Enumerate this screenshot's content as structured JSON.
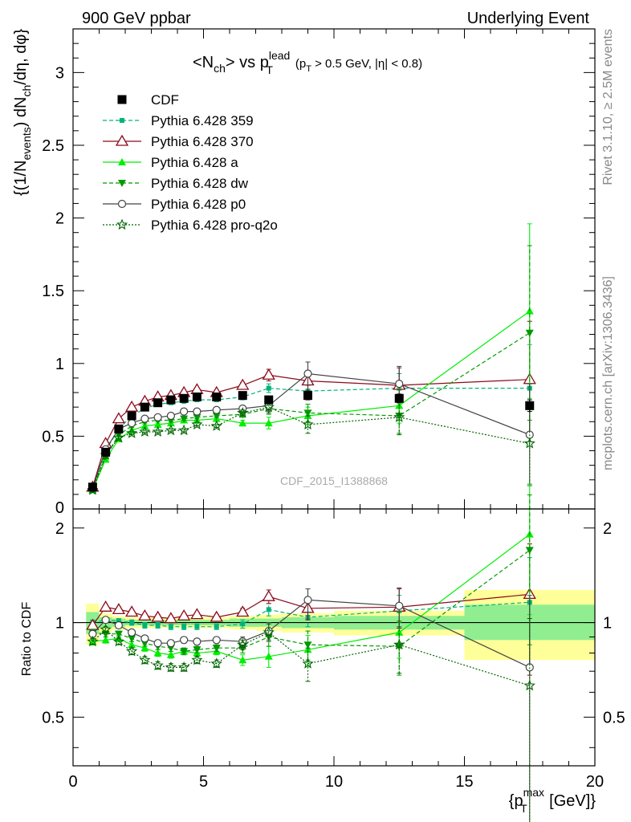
{
  "header": {
    "left": "900 GeV ppbar",
    "right": "Underlying Event"
  },
  "side_labels": {
    "rivet": "Rivet 3.1.10, ≥ 2.5M events",
    "mcplots": "mcplots.cern.ch [arXiv:1306.3436]"
  },
  "watermark": "CDF_2015_I1388868",
  "colors": {
    "CDF": "#000000",
    "Pythia 6.428 359": "#00b37a",
    "Pythia 6.428 370": "#8b0a1a",
    "Pythia 6.428 a": "#00ee00",
    "Pythia 6.428 dw": "#009900",
    "Pythia 6.428 p0": "#444444",
    "Pythia 6.428 pro-q2o": "#006600",
    "band_inner": "#90ee90",
    "band_outer": "#ffff99"
  },
  "chart_data": [
    {
      "type": "scatter",
      "panel": "main",
      "title": "<N_ch> vs p_T^lead (p_T > 0.5 GeV, |η| < 0.8)",
      "title_main": "<N",
      "title_sub_ch": "ch",
      "title_vs": "> vs p",
      "title_sup_lead": "lead",
      "title_sub_T": "T",
      "title_cuts": "(p",
      "title_cuts_sub": "T",
      "title_cuts_rest": " > 0.5 GeV, |η| < 0.8)",
      "ylabel": "{(1/N_events) dN_ch/dη, dφ}",
      "ylabel_parts": {
        "a": "{(1/N",
        "b": "events",
        "c": ") dN",
        "d": "ch",
        "e": "/dη, dφ}"
      },
      "xlim": [
        0,
        20
      ],
      "ylim": [
        0,
        3.3
      ],
      "yticks": [
        0.5,
        1,
        1.5,
        2,
        2.5,
        3
      ],
      "ytick_labels": [
        "0.5",
        "1",
        "1.5",
        "2",
        "2.5",
        "3"
      ],
      "ytick_zero_label": "0",
      "legend_position": "top-left",
      "series": [
        {
          "name": "CDF",
          "style": "square",
          "x": [
            0.75,
            1.25,
            1.75,
            2.25,
            2.75,
            3.25,
            3.75,
            4.25,
            4.75,
            5.5,
            6.5,
            7.5,
            9,
            12.5,
            17.5
          ],
          "y": [
            0.15,
            0.39,
            0.55,
            0.64,
            0.7,
            0.73,
            0.75,
            0.76,
            0.77,
            0.77,
            0.78,
            0.75,
            0.78,
            0.76,
            0.71
          ],
          "err": [
            0.01,
            0.01,
            0.01,
            0.01,
            0.01,
            0.01,
            0.01,
            0.01,
            0.01,
            0.01,
            0.02,
            0.02,
            0.03,
            0.03,
            0.04
          ]
        },
        {
          "name": "Pythia 6.428 359",
          "style": "dashed-smallsquare",
          "x": [
            0.75,
            1.25,
            1.75,
            2.25,
            2.75,
            3.25,
            3.75,
            4.25,
            4.75,
            5.5,
            6.5,
            7.5,
            9,
            12.5,
            17.5
          ],
          "y": [
            0.15,
            0.4,
            0.55,
            0.64,
            0.69,
            0.72,
            0.73,
            0.74,
            0.75,
            0.75,
            0.77,
            0.83,
            0.81,
            0.83,
            0.83
          ],
          "err": [
            0.01,
            0.01,
            0.01,
            0.01,
            0.01,
            0.01,
            0.01,
            0.01,
            0.01,
            0.01,
            0.02,
            0.03,
            0.05,
            0.1,
            0.3
          ]
        },
        {
          "name": "Pythia 6.428 370",
          "style": "solid-opentriangle",
          "x": [
            0.75,
            1.25,
            1.75,
            2.25,
            2.75,
            3.25,
            3.75,
            4.25,
            4.75,
            5.5,
            6.5,
            7.5,
            9,
            12.5,
            17.5
          ],
          "y": [
            0.15,
            0.45,
            0.62,
            0.7,
            0.74,
            0.77,
            0.78,
            0.8,
            0.82,
            0.8,
            0.85,
            0.92,
            0.88,
            0.85,
            0.89
          ],
          "err": [
            0.01,
            0.01,
            0.01,
            0.01,
            0.01,
            0.01,
            0.01,
            0.01,
            0.01,
            0.01,
            0.02,
            0.04,
            0.07,
            0.12,
            0.4
          ]
        },
        {
          "name": "Pythia 6.428 a",
          "style": "solid-triangle",
          "x": [
            0.75,
            1.25,
            1.75,
            2.25,
            2.75,
            3.25,
            3.75,
            4.25,
            4.75,
            5.5,
            6.5,
            7.5,
            9,
            12.5,
            17.5
          ],
          "y": [
            0.13,
            0.34,
            0.48,
            0.54,
            0.57,
            0.58,
            0.59,
            0.61,
            0.61,
            0.62,
            0.59,
            0.59,
            0.64,
            0.71,
            1.36
          ],
          "err": [
            0.01,
            0.01,
            0.01,
            0.01,
            0.01,
            0.01,
            0.01,
            0.01,
            0.01,
            0.01,
            0.02,
            0.04,
            0.06,
            0.12,
            0.6
          ]
        },
        {
          "name": "Pythia 6.428 dw",
          "style": "dashed-downtriangle",
          "x": [
            0.75,
            1.25,
            1.75,
            2.25,
            2.75,
            3.25,
            3.75,
            4.25,
            4.75,
            5.5,
            6.5,
            7.5,
            9,
            12.5,
            17.5
          ],
          "y": [
            0.14,
            0.36,
            0.51,
            0.57,
            0.6,
            0.61,
            0.61,
            0.62,
            0.63,
            0.64,
            0.65,
            0.69,
            0.66,
            0.64,
            1.21
          ],
          "err": [
            0.01,
            0.01,
            0.01,
            0.01,
            0.01,
            0.01,
            0.01,
            0.01,
            0.01,
            0.01,
            0.02,
            0.04,
            0.06,
            0.12,
            0.6
          ]
        },
        {
          "name": "Pythia 6.428 p0",
          "style": "solid-opencircle",
          "x": [
            0.75,
            1.25,
            1.75,
            2.25,
            2.75,
            3.25,
            3.75,
            4.25,
            4.75,
            5.5,
            6.5,
            7.5,
            9,
            12.5,
            17.5
          ],
          "y": [
            0.14,
            0.41,
            0.55,
            0.59,
            0.62,
            0.63,
            0.64,
            0.67,
            0.67,
            0.68,
            0.69,
            0.71,
            0.93,
            0.86,
            0.51
          ],
          "err": [
            0.01,
            0.01,
            0.01,
            0.01,
            0.01,
            0.01,
            0.01,
            0.01,
            0.01,
            0.01,
            0.02,
            0.04,
            0.08,
            0.12,
            0.35
          ]
        },
        {
          "name": "Pythia 6.428 pro-q2o",
          "style": "dotted-star",
          "x": [
            0.75,
            1.25,
            1.75,
            2.25,
            2.75,
            3.25,
            3.75,
            4.25,
            4.75,
            5.5,
            6.5,
            7.5,
            9,
            12.5,
            17.5
          ],
          "y": [
            0.13,
            0.37,
            0.49,
            0.52,
            0.53,
            0.53,
            0.54,
            0.54,
            0.58,
            0.57,
            0.66,
            0.7,
            0.58,
            0.63,
            0.45
          ],
          "err": [
            0.01,
            0.01,
            0.01,
            0.01,
            0.01,
            0.01,
            0.01,
            0.01,
            0.01,
            0.01,
            0.02,
            0.04,
            0.06,
            0.12,
            0.28
          ]
        }
      ]
    },
    {
      "type": "scatter",
      "panel": "ratio",
      "ylabel": "Ratio to CDF",
      "xlabel": "{p_T^max [GeV]}",
      "xlabel_parts": {
        "a": "{p",
        "sub": "T",
        "sup": "max",
        "b": " [GeV]}"
      },
      "xlim": [
        0,
        20
      ],
      "ylim": [
        0.35,
        2.3
      ],
      "xticks": [
        0,
        5,
        10,
        15,
        20
      ],
      "xtick_labels": [
        "0",
        "5",
        "10",
        "15",
        "20"
      ],
      "yticks": [
        0.5,
        1,
        2
      ],
      "ytick_labels": [
        "0.5",
        "1",
        "2"
      ],
      "bands": {
        "xlo": [
          0.5,
          1,
          1.5,
          2,
          2.5,
          3,
          3.5,
          4,
          4.5,
          5,
          6,
          7,
          8,
          10,
          15
        ],
        "xhi": [
          1,
          1.5,
          2,
          2.5,
          3,
          3.5,
          4,
          4.5,
          5,
          6,
          7,
          8,
          10,
          15,
          20
        ],
        "inner_lo": [
          0.92,
          0.96,
          0.97,
          0.98,
          0.98,
          0.98,
          0.98,
          0.98,
          0.98,
          0.98,
          0.97,
          0.97,
          0.96,
          0.95,
          0.88
        ],
        "inner_hi": [
          1.08,
          1.04,
          1.03,
          1.02,
          1.02,
          1.02,
          1.02,
          1.02,
          1.02,
          1.02,
          1.03,
          1.03,
          1.04,
          1.05,
          1.14
        ],
        "outer_lo": [
          0.85,
          0.93,
          0.95,
          0.96,
          0.96,
          0.96,
          0.96,
          0.96,
          0.96,
          0.96,
          0.95,
          0.94,
          0.93,
          0.91,
          0.76
        ],
        "outer_hi": [
          1.15,
          1.07,
          1.05,
          1.04,
          1.04,
          1.04,
          1.04,
          1.04,
          1.04,
          1.04,
          1.05,
          1.06,
          1.07,
          1.09,
          1.27
        ]
      },
      "series": [
        {
          "name": "Pythia 6.428 359",
          "style": "dashed-smallsquare",
          "x": [
            0.75,
            1.25,
            1.75,
            2.25,
            2.75,
            3.25,
            3.75,
            4.25,
            4.75,
            5.5,
            6.5,
            7.5,
            9,
            12.5,
            17.5
          ],
          "y": [
            1.0,
            1.02,
            1.01,
            1.0,
            0.98,
            0.98,
            0.97,
            0.97,
            0.97,
            0.97,
            0.99,
            1.1,
            1.04,
            1.09,
            1.16
          ],
          "err": [
            0.02,
            0.02,
            0.02,
            0.02,
            0.02,
            0.02,
            0.02,
            0.02,
            0.02,
            0.02,
            0.03,
            0.05,
            0.07,
            0.13,
            0.45
          ]
        },
        {
          "name": "Pythia 6.428 370",
          "style": "solid-opentriangle",
          "x": [
            0.75,
            1.25,
            1.75,
            2.25,
            2.75,
            3.25,
            3.75,
            4.25,
            4.75,
            5.5,
            6.5,
            7.5,
            9,
            12.5,
            17.5
          ],
          "y": [
            0.98,
            1.12,
            1.1,
            1.08,
            1.05,
            1.04,
            1.03,
            1.05,
            1.06,
            1.04,
            1.08,
            1.21,
            1.11,
            1.12,
            1.23
          ],
          "err": [
            0.02,
            0.02,
            0.02,
            0.02,
            0.02,
            0.02,
            0.02,
            0.02,
            0.02,
            0.02,
            0.03,
            0.06,
            0.09,
            0.16,
            0.55
          ]
        },
        {
          "name": "Pythia 6.428 a",
          "style": "solid-triangle",
          "x": [
            0.75,
            1.25,
            1.75,
            2.25,
            2.75,
            3.25,
            3.75,
            4.25,
            4.75,
            5.5,
            6.5,
            7.5,
            9,
            12.5,
            17.5
          ],
          "y": [
            0.87,
            0.88,
            0.89,
            0.85,
            0.83,
            0.8,
            0.79,
            0.81,
            0.8,
            0.81,
            0.76,
            0.78,
            0.82,
            0.93,
            1.91
          ],
          "err": [
            0.02,
            0.02,
            0.02,
            0.02,
            0.02,
            0.02,
            0.02,
            0.02,
            0.02,
            0.02,
            0.03,
            0.06,
            0.09,
            0.16,
            0.85
          ]
        },
        {
          "name": "Pythia 6.428 dw",
          "style": "dashed-downtriangle",
          "x": [
            0.75,
            1.25,
            1.75,
            2.25,
            2.75,
            3.25,
            3.75,
            4.25,
            4.75,
            5.5,
            6.5,
            7.5,
            9,
            12.5,
            17.5
          ],
          "y": [
            0.93,
            0.92,
            0.92,
            0.89,
            0.86,
            0.84,
            0.83,
            0.81,
            0.82,
            0.83,
            0.83,
            0.9,
            0.85,
            0.84,
            1.7
          ],
          "err": [
            0.02,
            0.02,
            0.02,
            0.02,
            0.02,
            0.02,
            0.02,
            0.02,
            0.02,
            0.02,
            0.03,
            0.06,
            0.09,
            0.16,
            0.85
          ]
        },
        {
          "name": "Pythia 6.428 p0",
          "style": "solid-opencircle",
          "x": [
            0.75,
            1.25,
            1.75,
            2.25,
            2.75,
            3.25,
            3.75,
            4.25,
            4.75,
            5.5,
            6.5,
            7.5,
            9,
            12.5,
            17.5
          ],
          "y": [
            0.92,
            1.02,
            0.98,
            0.93,
            0.89,
            0.86,
            0.86,
            0.88,
            0.87,
            0.88,
            0.87,
            0.94,
            1.18,
            1.13,
            0.72
          ],
          "err": [
            0.02,
            0.02,
            0.02,
            0.02,
            0.02,
            0.02,
            0.02,
            0.02,
            0.02,
            0.02,
            0.03,
            0.06,
            0.1,
            0.16,
            0.5
          ]
        },
        {
          "name": "Pythia 6.428 pro-q2o",
          "style": "dotted-star",
          "x": [
            0.75,
            1.25,
            1.75,
            2.25,
            2.75,
            3.25,
            3.75,
            4.25,
            4.75,
            5.5,
            6.5,
            7.5,
            9,
            12.5,
            17.5
          ],
          "y": [
            0.87,
            0.95,
            0.87,
            0.81,
            0.76,
            0.73,
            0.72,
            0.72,
            0.76,
            0.74,
            0.85,
            0.93,
            0.74,
            0.85,
            0.63
          ],
          "err": [
            0.02,
            0.02,
            0.02,
            0.02,
            0.02,
            0.02,
            0.02,
            0.02,
            0.02,
            0.02,
            0.03,
            0.06,
            0.09,
            0.16,
            0.4
          ]
        }
      ]
    }
  ]
}
